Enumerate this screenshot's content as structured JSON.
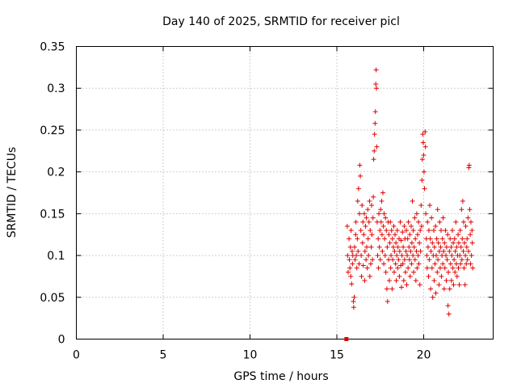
{
  "chart_data": {
    "type": "scatter",
    "title": "Day 140 of 2025, SRMTID for receiver picl",
    "xlabel": "GPS time / hours",
    "ylabel": "SRMTID / TECUs",
    "xlim": [
      0,
      24
    ],
    "ylim": [
      0,
      0.35
    ],
    "xticks": [
      0,
      5,
      10,
      15,
      20
    ],
    "yticks": [
      0,
      0.05,
      0.1,
      0.15,
      0.2,
      0.25,
      0.3,
      0.35
    ],
    "ytick_labels": [
      "0",
      "0.05",
      "0.1",
      "0.15",
      "0.2",
      "0.25",
      "0.3",
      "0.35"
    ],
    "grid": true,
    "marker": "plus",
    "series_color": "#e00000",
    "gap_marker": {
      "x": 15.55,
      "y": 0.0
    },
    "data_span": {
      "x_start": 15.5,
      "x_end": 22.9
    },
    "points": [
      [
        15.6,
        0.135
      ],
      [
        15.62,
        0.1
      ],
      [
        15.65,
        0.08
      ],
      [
        15.7,
        0.12
      ],
      [
        15.72,
        0.095
      ],
      [
        15.75,
        0.085
      ],
      [
        15.78,
        0.11
      ],
      [
        15.8,
        0.075
      ],
      [
        15.82,
        0.13
      ],
      [
        15.85,
        0.066
      ],
      [
        15.88,
        0.105
      ],
      [
        15.9,
        0.09
      ],
      [
        15.92,
        0.1
      ],
      [
        15.95,
        0.045
      ],
      [
        15.97,
        0.038
      ],
      [
        16.0,
        0.05
      ],
      [
        16.02,
        0.11
      ],
      [
        16.05,
        0.095
      ],
      [
        16.08,
        0.125
      ],
      [
        16.1,
        0.14
      ],
      [
        16.12,
        0.1
      ],
      [
        16.15,
        0.085
      ],
      [
        16.18,
        0.12
      ],
      [
        16.2,
        0.165
      ],
      [
        16.22,
        0.105
      ],
      [
        16.25,
        0.18
      ],
      [
        16.28,
        0.09
      ],
      [
        16.3,
        0.15
      ],
      [
        16.32,
        0.208
      ],
      [
        16.35,
        0.195
      ],
      [
        16.38,
        0.13
      ],
      [
        16.4,
        0.1
      ],
      [
        16.42,
        0.075
      ],
      [
        16.45,
        0.16
      ],
      [
        16.48,
        0.115
      ],
      [
        16.5,
        0.14
      ],
      [
        16.52,
        0.088
      ],
      [
        16.55,
        0.125
      ],
      [
        16.58,
        0.15
      ],
      [
        16.6,
        0.07
      ],
      [
        16.62,
        0.105
      ],
      [
        16.65,
        0.135
      ],
      [
        16.68,
        0.095
      ],
      [
        16.7,
        0.145
      ],
      [
        16.72,
        0.11
      ],
      [
        16.75,
        0.085
      ],
      [
        16.78,
        0.155
      ],
      [
        16.8,
        0.12
      ],
      [
        16.82,
        0.1
      ],
      [
        16.85,
        0.14
      ],
      [
        16.88,
        0.165
      ],
      [
        16.9,
        0.075
      ],
      [
        16.92,
        0.13
      ],
      [
        16.95,
        0.09
      ],
      [
        16.98,
        0.11
      ],
      [
        17.0,
        0.16
      ],
      [
        17.02,
        0.125
      ],
      [
        17.05,
        0.095
      ],
      [
        17.08,
        0.145
      ],
      [
        17.1,
        0.17
      ],
      [
        17.12,
        0.215
      ],
      [
        17.15,
        0.225
      ],
      [
        17.17,
        0.245
      ],
      [
        17.2,
        0.258
      ],
      [
        17.22,
        0.272
      ],
      [
        17.24,
        0.305
      ],
      [
        17.26,
        0.322
      ],
      [
        17.28,
        0.3
      ],
      [
        17.3,
        0.23
      ],
      [
        17.32,
        0.14
      ],
      [
        17.35,
        0.1
      ],
      [
        17.38,
        0.12
      ],
      [
        17.4,
        0.085
      ],
      [
        17.42,
        0.15
      ],
      [
        17.45,
        0.11
      ],
      [
        17.48,
        0.13
      ],
      [
        17.5,
        0.095
      ],
      [
        17.52,
        0.155
      ],
      [
        17.55,
        0.14
      ],
      [
        17.58,
        0.165
      ],
      [
        17.6,
        0.125
      ],
      [
        17.62,
        0.105
      ],
      [
        17.65,
        0.175
      ],
      [
        17.68,
        0.135
      ],
      [
        17.7,
        0.09
      ],
      [
        17.72,
        0.15
      ],
      [
        17.75,
        0.12
      ],
      [
        17.78,
        0.1
      ],
      [
        17.8,
        0.145
      ],
      [
        17.82,
        0.08
      ],
      [
        17.85,
        0.13
      ],
      [
        17.88,
        0.06
      ],
      [
        17.9,
        0.11
      ],
      [
        17.92,
        0.045
      ],
      [
        17.95,
        0.14
      ],
      [
        17.98,
        0.095
      ],
      [
        18.0,
        0.125
      ],
      [
        18.02,
        0.07
      ],
      [
        18.05,
        0.115
      ],
      [
        18.08,
        0.14
      ],
      [
        18.1,
        0.085
      ],
      [
        18.12,
        0.1
      ],
      [
        18.15,
        0.13
      ],
      [
        18.18,
        0.06
      ],
      [
        18.2,
        0.12
      ],
      [
        18.22,
        0.095
      ],
      [
        18.25,
        0.11
      ],
      [
        18.28,
        0.135
      ],
      [
        18.3,
        0.08
      ],
      [
        18.32,
        0.105
      ],
      [
        18.35,
        0.125
      ],
      [
        18.38,
        0.09
      ],
      [
        18.4,
        0.115
      ],
      [
        18.42,
        0.07
      ],
      [
        18.45,
        0.1
      ],
      [
        18.48,
        0.13
      ],
      [
        18.5,
        0.085
      ],
      [
        18.52,
        0.11
      ],
      [
        18.55,
        0.095
      ],
      [
        18.58,
        0.12
      ],
      [
        18.6,
        0.075
      ],
      [
        18.62,
        0.105
      ],
      [
        18.65,
        0.14
      ],
      [
        18.68,
        0.088
      ],
      [
        18.7,
        0.118
      ],
      [
        18.72,
        0.062
      ],
      [
        18.75,
        0.1
      ],
      [
        18.78,
        0.128
      ],
      [
        18.8,
        0.09
      ],
      [
        18.82,
        0.11
      ],
      [
        18.85,
        0.07
      ],
      [
        18.88,
        0.135
      ],
      [
        18.9,
        0.095
      ],
      [
        18.92,
        0.12
      ],
      [
        18.95,
        0.08
      ],
      [
        18.98,
        0.105
      ],
      [
        19.0,
        0.13
      ],
      [
        19.02,
        0.065
      ],
      [
        19.05,
        0.1
      ],
      [
        19.08,
        0.12
      ],
      [
        19.1,
        0.085
      ],
      [
        19.12,
        0.14
      ],
      [
        19.15,
        0.11
      ],
      [
        19.18,
        0.095
      ],
      [
        19.2,
        0.125
      ],
      [
        19.22,
        0.075
      ],
      [
        19.25,
        0.105
      ],
      [
        19.28,
        0.135
      ],
      [
        19.3,
        0.09
      ],
      [
        19.32,
        0.115
      ],
      [
        19.35,
        0.165
      ],
      [
        19.38,
        0.1
      ],
      [
        19.4,
        0.13
      ],
      [
        19.42,
        0.08
      ],
      [
        19.45,
        0.11
      ],
      [
        19.48,
        0.145
      ],
      [
        19.5,
        0.095
      ],
      [
        19.52,
        0.12
      ],
      [
        19.55,
        0.07
      ],
      [
        19.58,
        0.105
      ],
      [
        19.6,
        0.15
      ],
      [
        19.62,
        0.085
      ],
      [
        19.65,
        0.125
      ],
      [
        19.68,
        0.1
      ],
      [
        19.7,
        0.14
      ],
      [
        19.72,
        0.09
      ],
      [
        19.75,
        0.115
      ],
      [
        19.78,
        0.065
      ],
      [
        19.8,
        0.13
      ],
      [
        19.82,
        0.105
      ],
      [
        19.85,
        0.16
      ],
      [
        19.88,
        0.135
      ],
      [
        19.9,
        0.19
      ],
      [
        19.92,
        0.215
      ],
      [
        19.95,
        0.245
      ],
      [
        19.97,
        0.235
      ],
      [
        20.0,
        0.22
      ],
      [
        20.02,
        0.2
      ],
      [
        20.05,
        0.18
      ],
      [
        20.08,
        0.248
      ],
      [
        20.1,
        0.23
      ],
      [
        20.12,
        0.15
      ],
      [
        20.15,
        0.12
      ],
      [
        20.18,
        0.1
      ],
      [
        20.2,
        0.085
      ],
      [
        20.22,
        0.14
      ],
      [
        20.25,
        0.11
      ],
      [
        20.28,
        0.075
      ],
      [
        20.3,
        0.13
      ],
      [
        20.32,
        0.095
      ],
      [
        20.35,
        0.16
      ],
      [
        20.38,
        0.12
      ],
      [
        20.4,
        0.06
      ],
      [
        20.42,
        0.105
      ],
      [
        20.45,
        0.145
      ],
      [
        20.48,
        0.085
      ],
      [
        20.5,
        0.115
      ],
      [
        20.52,
        0.05
      ],
      [
        20.55,
        0.1
      ],
      [
        20.58,
        0.13
      ],
      [
        20.6,
        0.07
      ],
      [
        20.62,
        0.11
      ],
      [
        20.65,
        0.09
      ],
      [
        20.68,
        0.135
      ],
      [
        20.7,
        0.055
      ],
      [
        20.72,
        0.1
      ],
      [
        20.75,
        0.12
      ],
      [
        20.78,
        0.08
      ],
      [
        20.8,
        0.155
      ],
      [
        20.82,
        0.095
      ],
      [
        20.85,
        0.115
      ],
      [
        20.88,
        0.065
      ],
      [
        20.9,
        0.105
      ],
      [
        20.92,
        0.14
      ],
      [
        20.95,
        0.085
      ],
      [
        20.98,
        0.11
      ],
      [
        21.0,
        0.13
      ],
      [
        21.02,
        0.075
      ],
      [
        21.05,
        0.1
      ],
      [
        21.08,
        0.12
      ],
      [
        21.1,
        0.09
      ],
      [
        21.12,
        0.145
      ],
      [
        21.15,
        0.105
      ],
      [
        21.18,
        0.06
      ],
      [
        21.2,
        0.115
      ],
      [
        21.22,
        0.085
      ],
      [
        21.25,
        0.13
      ],
      [
        21.28,
        0.1
      ],
      [
        21.3,
        0.07
      ],
      [
        21.32,
        0.11
      ],
      [
        21.35,
        0.095
      ],
      [
        21.38,
        0.125
      ],
      [
        21.4,
        0.04
      ],
      [
        21.42,
        0.08
      ],
      [
        21.45,
        0.03
      ],
      [
        21.48,
        0.105
      ],
      [
        21.5,
        0.06
      ],
      [
        21.52,
        0.12
      ],
      [
        21.55,
        0.09
      ],
      [
        21.58,
        0.11
      ],
      [
        21.6,
        0.07
      ],
      [
        21.62,
        0.1
      ],
      [
        21.65,
        0.13
      ],
      [
        21.68,
        0.085
      ],
      [
        21.7,
        0.115
      ],
      [
        21.72,
        0.065
      ],
      [
        21.75,
        0.095
      ],
      [
        21.78,
        0.12
      ],
      [
        21.8,
        0.08
      ],
      [
        21.82,
        0.105
      ],
      [
        21.85,
        0.14
      ],
      [
        21.88,
        0.09
      ],
      [
        21.9,
        0.11
      ],
      [
        21.92,
        0.075
      ],
      [
        21.95,
        0.1
      ],
      [
        21.98,
        0.125
      ],
      [
        22.0,
        0.085
      ],
      [
        22.02,
        0.115
      ],
      [
        22.05,
        0.065
      ],
      [
        22.08,
        0.1
      ],
      [
        22.1,
        0.13
      ],
      [
        22.12,
        0.09
      ],
      [
        22.15,
        0.11
      ],
      [
        22.18,
        0.155
      ],
      [
        22.2,
        0.095
      ],
      [
        22.22,
        0.12
      ],
      [
        22.25,
        0.165
      ],
      [
        22.28,
        0.105
      ],
      [
        22.3,
        0.14
      ],
      [
        22.32,
        0.085
      ],
      [
        22.35,
        0.115
      ],
      [
        22.38,
        0.065
      ],
      [
        22.4,
        0.1
      ],
      [
        22.42,
        0.135
      ],
      [
        22.45,
        0.09
      ],
      [
        22.48,
        0.11
      ],
      [
        22.5,
        0.12
      ],
      [
        22.52,
        0.095
      ],
      [
        22.55,
        0.145
      ],
      [
        22.58,
        0.105
      ],
      [
        22.6,
        0.205
      ],
      [
        22.62,
        0.208
      ],
      [
        22.65,
        0.155
      ],
      [
        22.68,
        0.125
      ],
      [
        22.7,
        0.09
      ],
      [
        22.72,
        0.14
      ],
      [
        22.75,
        0.1
      ],
      [
        22.78,
        0.13
      ],
      [
        22.8,
        0.115
      ],
      [
        22.82,
        0.085
      ]
    ]
  }
}
